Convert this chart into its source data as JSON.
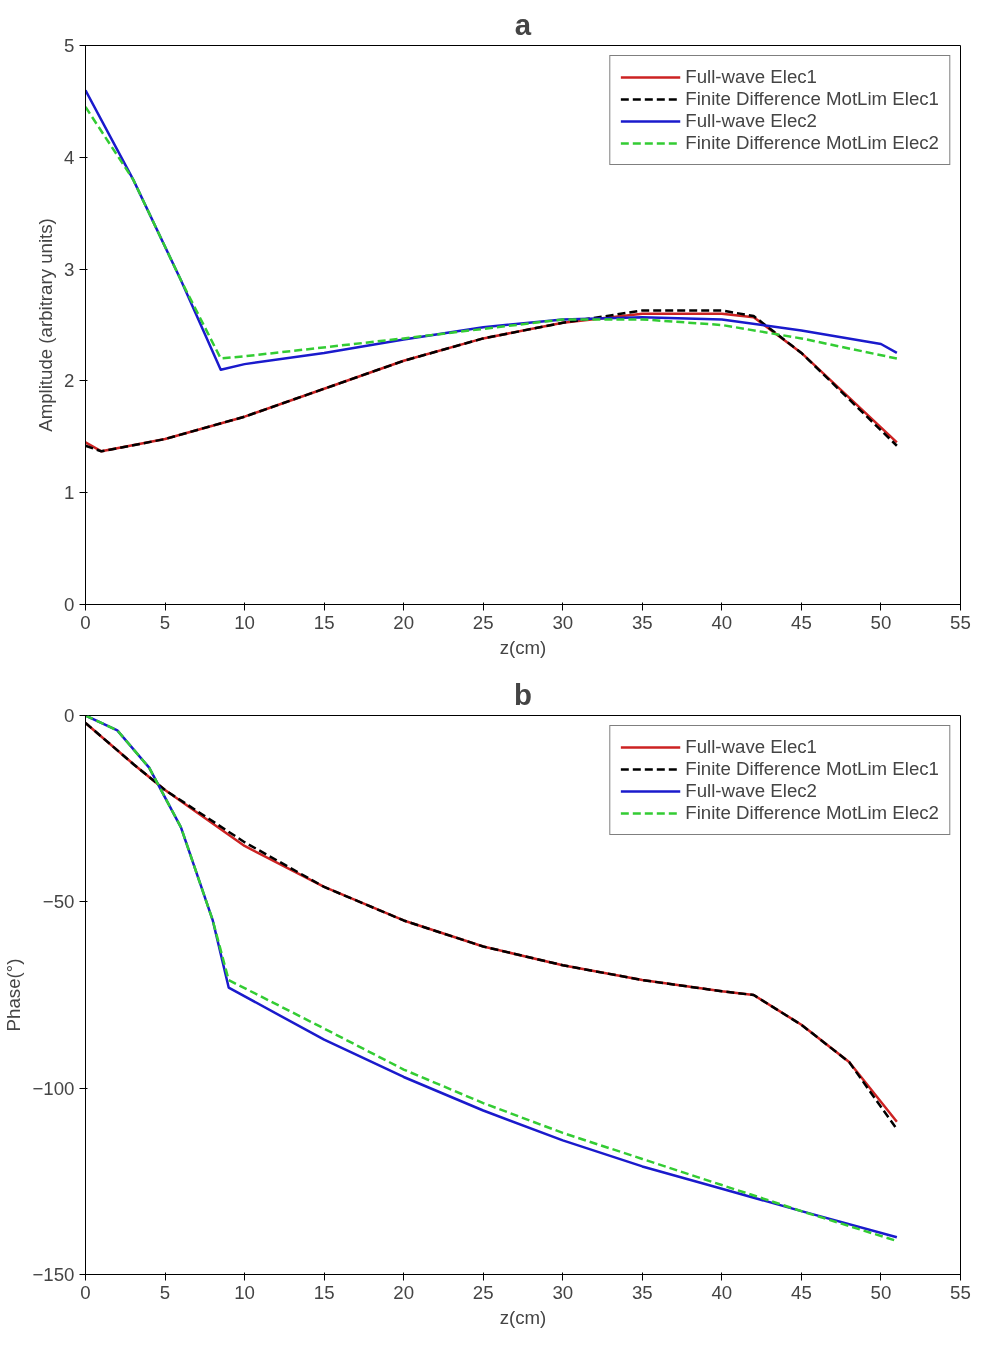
{
  "chart_data": [
    {
      "type": "line",
      "title": "a",
      "xlabel": "z(cm)",
      "ylabel": "Amplitude (arbitrary units)",
      "xlim": [
        0,
        55
      ],
      "ylim": [
        0,
        5
      ],
      "xticks": [
        0,
        5,
        10,
        15,
        20,
        25,
        30,
        35,
        40,
        45,
        50,
        55
      ],
      "yticks": [
        0,
        1,
        2,
        3,
        4,
        5
      ],
      "grid": false,
      "legend": "top right",
      "series": [
        {
          "name": "Full-wave Elec1",
          "color": "#cc2222",
          "line_style": "solid",
          "x": [
            0,
            1,
            5,
            10,
            15,
            20,
            25,
            30,
            35,
            40,
            42,
            45,
            51
          ],
          "values": [
            1.45,
            1.37,
            1.48,
            1.68,
            1.93,
            2.18,
            2.38,
            2.52,
            2.6,
            2.6,
            2.57,
            2.25,
            1.45
          ]
        },
        {
          "name": "Finite Difference MotLim Elec1",
          "color": "#000000",
          "line_style": "dashed",
          "x": [
            0,
            1,
            5,
            10,
            15,
            20,
            25,
            30,
            35,
            40,
            42,
            45,
            51
          ],
          "values": [
            1.42,
            1.37,
            1.48,
            1.68,
            1.93,
            2.18,
            2.38,
            2.52,
            2.63,
            2.63,
            2.58,
            2.25,
            1.42
          ]
        },
        {
          "name": "Full-wave Elec2",
          "color": "#1a1acc",
          "line_style": "solid",
          "x": [
            0,
            3,
            6,
            8.5,
            10,
            15,
            20,
            25,
            30,
            35,
            40,
            45,
            50,
            51
          ],
          "values": [
            4.6,
            3.8,
            2.9,
            2.1,
            2.15,
            2.25,
            2.37,
            2.48,
            2.55,
            2.57,
            2.55,
            2.45,
            2.33,
            2.25
          ]
        },
        {
          "name": "Finite Difference MotLim Elec2",
          "color": "#33cc33",
          "line_style": "dashed",
          "x": [
            0,
            3,
            6,
            8.5,
            10,
            20,
            30,
            35,
            40,
            45,
            51
          ],
          "values": [
            4.45,
            3.8,
            2.9,
            2.2,
            2.22,
            2.38,
            2.55,
            2.55,
            2.5,
            2.38,
            2.2
          ]
        }
      ]
    },
    {
      "type": "line",
      "title": "b",
      "xlabel": "z(cm)",
      "ylabel": "Phase(°)",
      "xlim": [
        0,
        55
      ],
      "ylim": [
        -150,
        0
      ],
      "xticks": [
        0,
        5,
        10,
        15,
        20,
        25,
        30,
        35,
        40,
        45,
        50,
        55
      ],
      "yticks": [
        -150,
        -100,
        -50,
        0
      ],
      "grid": false,
      "legend": "top right",
      "series": [
        {
          "name": "Full-wave Elec1",
          "color": "#cc2222",
          "line_style": "solid",
          "x": [
            0,
            3,
            5,
            10,
            15,
            20,
            25,
            30,
            35,
            40,
            42,
            45,
            48,
            51
          ],
          "values": [
            -2,
            -13,
            -20,
            -35,
            -46,
            -55,
            -62,
            -67,
            -71,
            -74,
            -75,
            -83,
            -93,
            -109
          ]
        },
        {
          "name": "Finite Difference MotLim Elec1",
          "color": "#000000",
          "line_style": "dashed",
          "x": [
            0,
            3,
            5,
            10,
            15,
            20,
            25,
            30,
            35,
            40,
            42,
            45,
            48,
            51
          ],
          "values": [
            -2,
            -13,
            -20,
            -34,
            -46,
            -55,
            -62,
            -67,
            -71,
            -74,
            -75,
            -83,
            -93,
            -111
          ]
        },
        {
          "name": "Full-wave Elec2",
          "color": "#1a1acc",
          "line_style": "solid",
          "x": [
            0,
            2,
            4,
            6,
            8,
            9,
            15,
            20,
            25,
            30,
            35,
            40,
            45,
            51
          ],
          "values": [
            0,
            -4,
            -14,
            -30,
            -55,
            -73,
            -87,
            -97,
            -106,
            -114,
            -121,
            -127,
            -133,
            -140
          ]
        },
        {
          "name": "Finite Difference MotLim Elec2",
          "color": "#33cc33",
          "line_style": "dashed",
          "x": [
            0,
            2,
            4,
            6,
            8,
            9,
            15,
            20,
            25,
            30,
            35,
            40,
            45,
            51
          ],
          "values": [
            0,
            -4,
            -14,
            -30,
            -55,
            -71,
            -84,
            -95,
            -104,
            -112,
            -119,
            -126,
            -133,
            -141
          ]
        }
      ]
    }
  ]
}
